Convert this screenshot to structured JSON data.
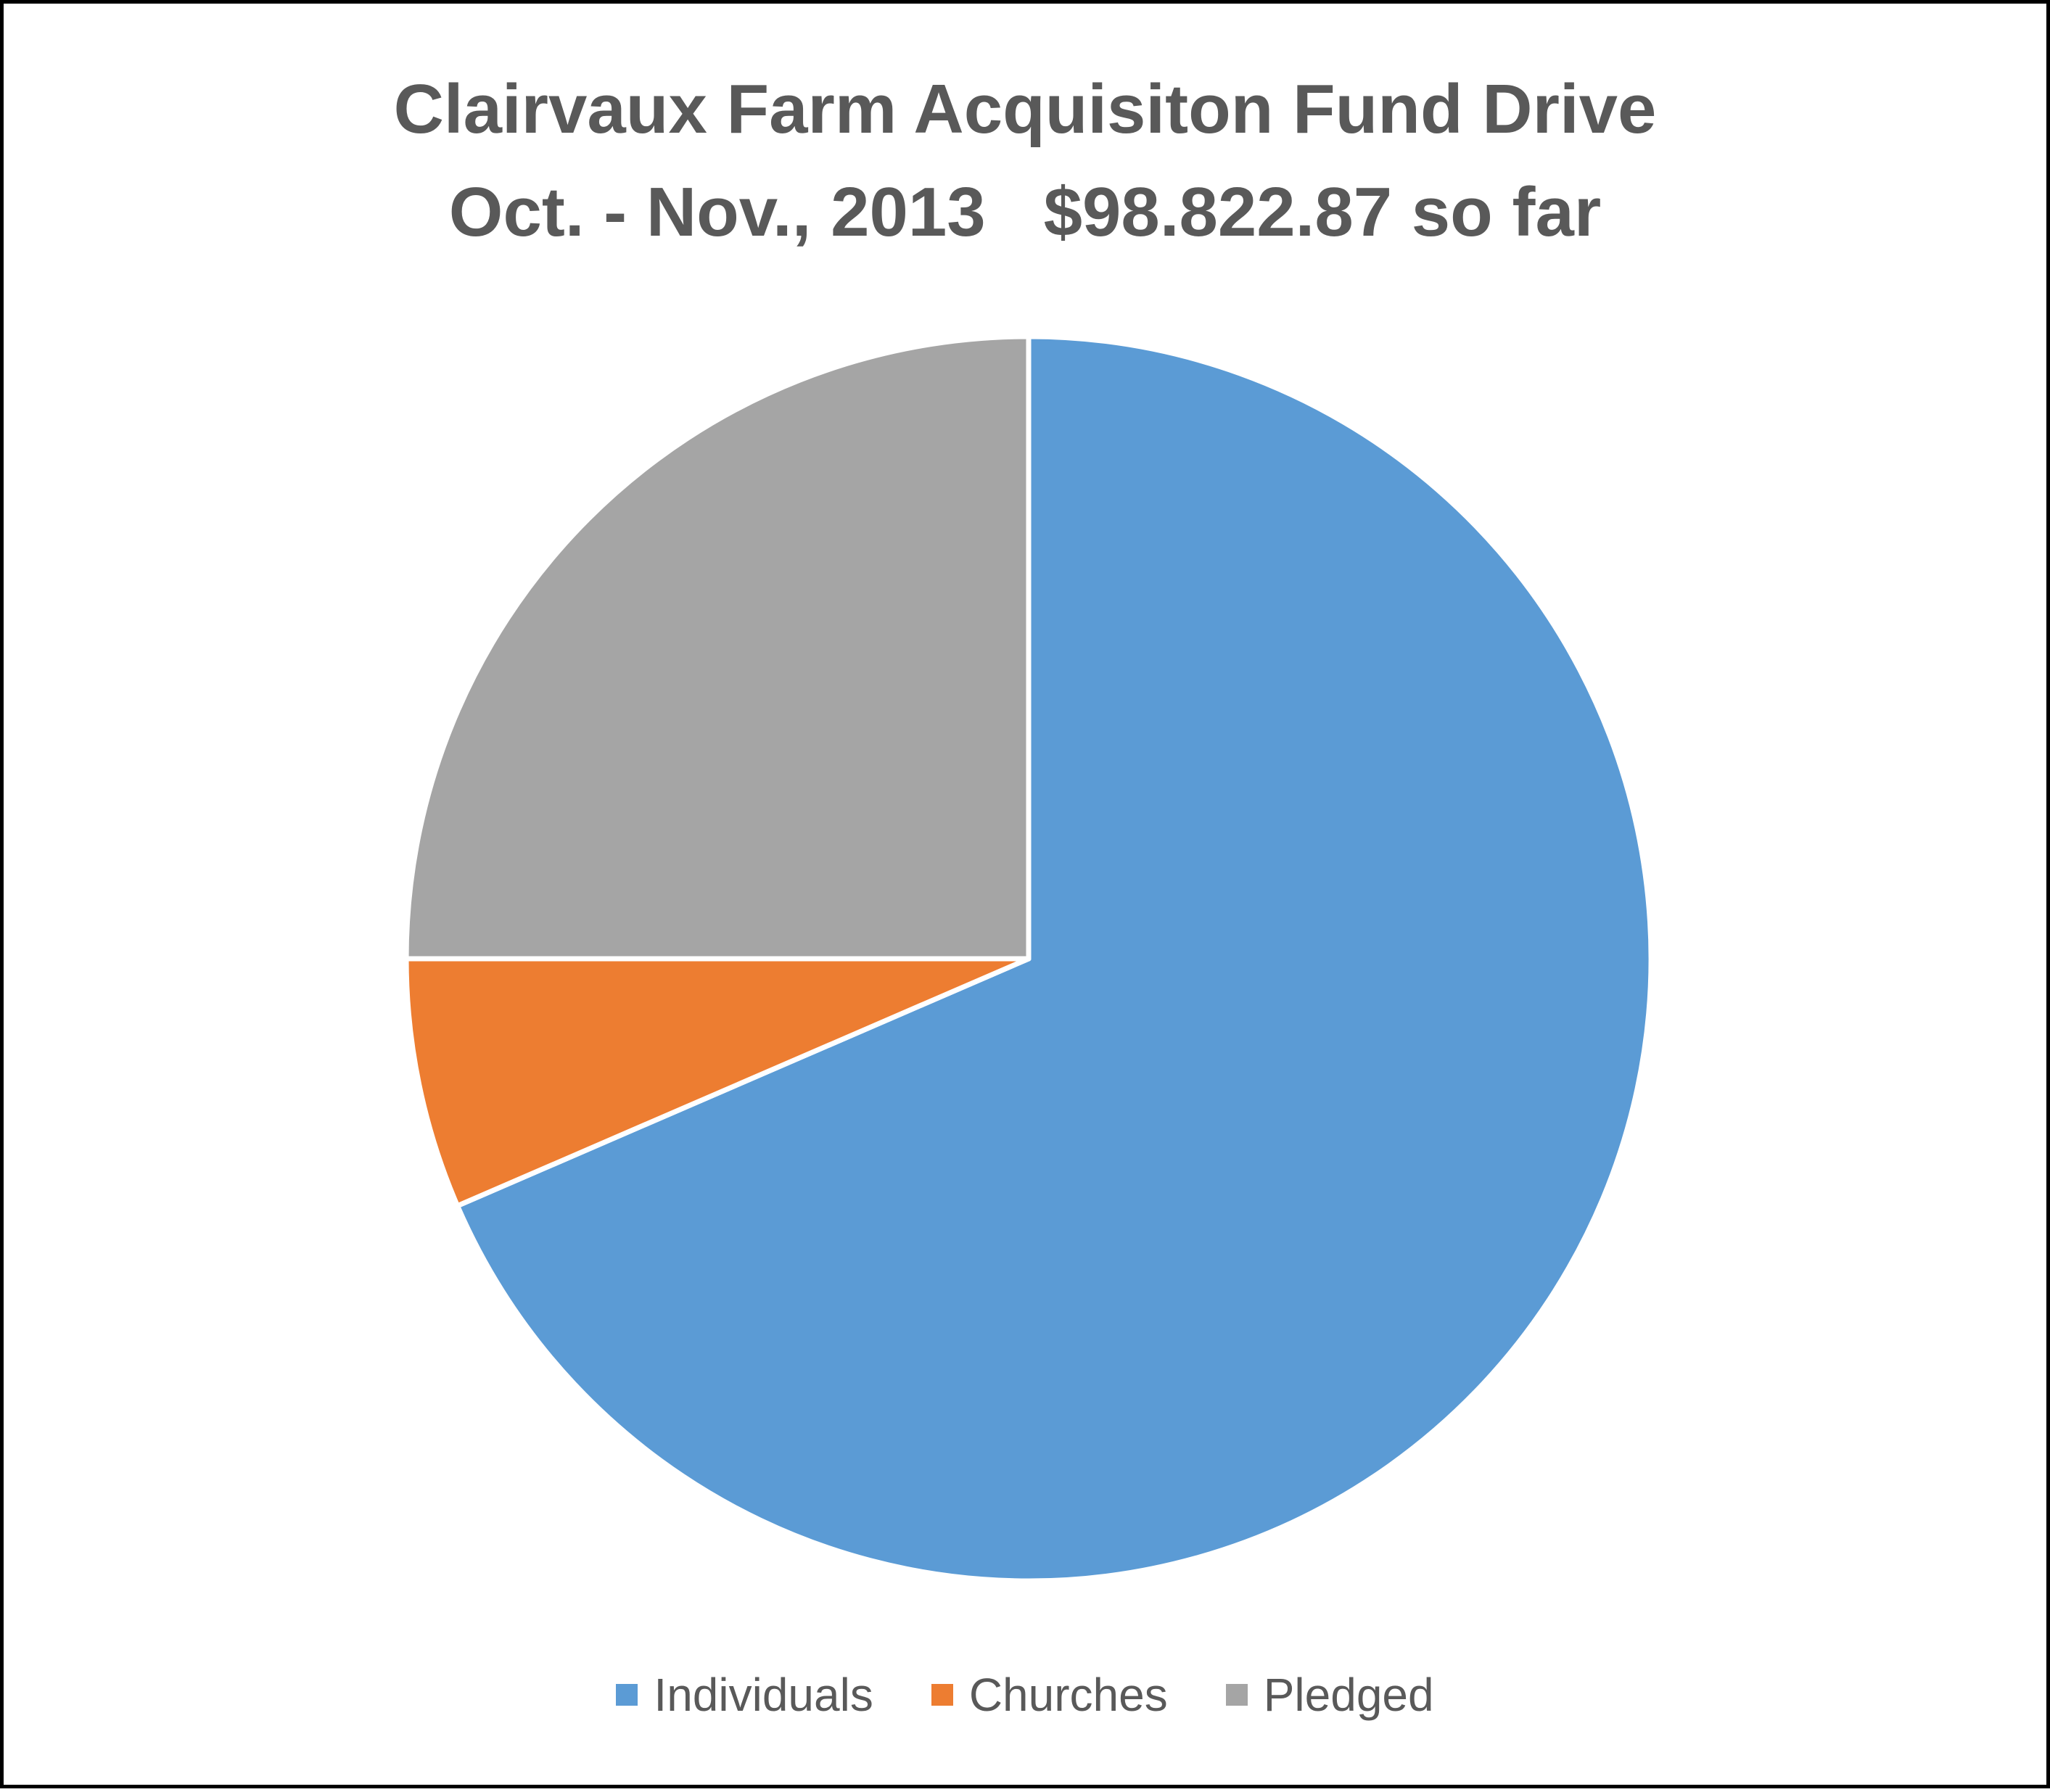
{
  "chart_data": {
    "type": "pie",
    "title_lines": [
      "Clairvaux Farm Acquisiton Fund Drive",
      "Oct. - Nov., 2013   $98.822.87 so far"
    ],
    "categories": [
      "Individuals",
      "Churches",
      "Pledged"
    ],
    "values": [
      68.5,
      6.5,
      25.0
    ],
    "colors": [
      "#5B9BD5",
      "#ED7D31",
      "#A5A5A5"
    ],
    "legend_position": "bottom"
  }
}
